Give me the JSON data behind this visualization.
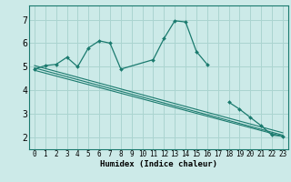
{
  "bg_color": "#cceae8",
  "grid_color": "#aad4d0",
  "line_color": "#1a7a6e",
  "marker_color": "#1a7a6e",
  "xlabel": "Humidex (Indice chaleur)",
  "xlim": [
    -0.5,
    23.5
  ],
  "ylim": [
    1.5,
    7.6
  ],
  "yticks": [
    2,
    3,
    4,
    5,
    6,
    7
  ],
  "xticks": [
    0,
    1,
    2,
    3,
    4,
    5,
    6,
    7,
    8,
    9,
    10,
    11,
    12,
    13,
    14,
    15,
    16,
    17,
    18,
    19,
    20,
    21,
    22,
    23
  ],
  "series_main": {
    "x": [
      0,
      1,
      2,
      3,
      4,
      5,
      6,
      7,
      8,
      11,
      12,
      13,
      14,
      15,
      16
    ],
    "y": [
      4.9,
      5.05,
      5.1,
      5.4,
      5.0,
      5.8,
      6.1,
      6.0,
      4.9,
      5.3,
      6.2,
      6.95,
      6.9,
      5.65,
      5.1
    ]
  },
  "series_diag1": {
    "x": [
      0,
      23
    ],
    "y": [
      4.85,
      2.05
    ]
  },
  "series_diag2": {
    "x": [
      0,
      23
    ],
    "y": [
      4.95,
      2.1
    ]
  },
  "series_diag3": {
    "x": [
      0,
      23
    ],
    "y": [
      5.05,
      2.2
    ]
  },
  "series_tail": {
    "x": [
      18,
      19,
      20,
      21,
      22,
      23
    ],
    "y": [
      3.5,
      3.2,
      2.85,
      2.5,
      2.1,
      2.05
    ]
  }
}
